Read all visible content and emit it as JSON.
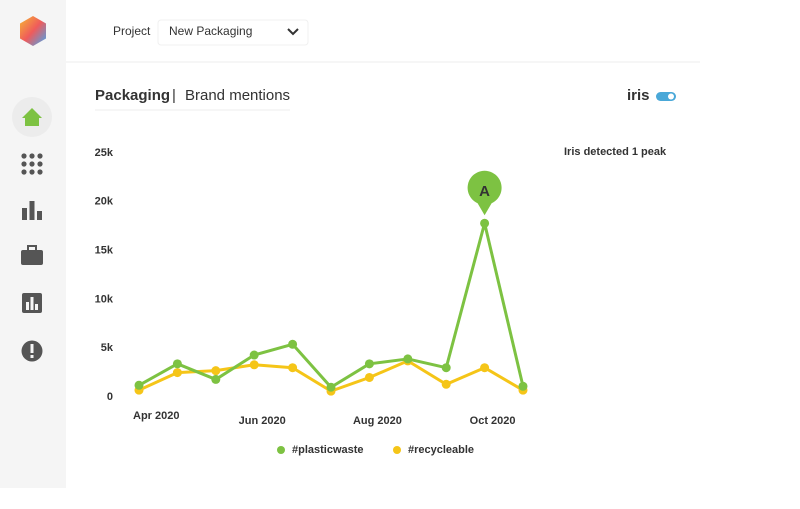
{
  "header": {
    "project_label": "Project",
    "project_value": "New Packaging"
  },
  "panel": {
    "title": "Packaging",
    "separator": "|",
    "subtitle": "Brand mentions",
    "toggle_label": "iris"
  },
  "chart_data": {
    "type": "line",
    "annotation": "Iris detected 1 peak",
    "peak_marker": "A",
    "categories": [
      "Apr 2020",
      null,
      null,
      "Jun 2020",
      null,
      null,
      "Aug 2020",
      null,
      null,
      "Oct 2020",
      null
    ],
    "series": [
      {
        "name": "#plasticwaste",
        "color": "#7dc242",
        "values": [
          1200,
          3400,
          1800,
          4300,
          5400,
          1000,
          3400,
          3900,
          3000,
          17800,
          1100
        ]
      },
      {
        "name": "#recycleable",
        "color": "#f5c518",
        "values": [
          700,
          2500,
          2700,
          3300,
          3000,
          600,
          2000,
          3700,
          1300,
          3000,
          700
        ]
      }
    ],
    "ylim": [
      0,
      25000
    ],
    "yticks": [
      0,
      {
        "value": 5000,
        "label": "5k"
      },
      {
        "value": 10000,
        "label": "10k"
      },
      {
        "value": 15000,
        "label": "15k"
      },
      {
        "value": 20000,
        "label": "20k"
      },
      {
        "value": 25000,
        "label": "25k"
      }
    ],
    "grid": false
  }
}
